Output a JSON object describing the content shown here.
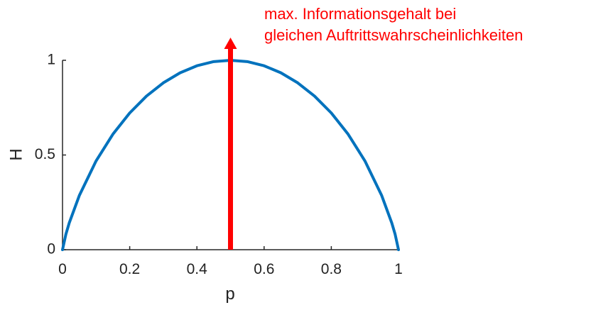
{
  "chart_data": {
    "type": "line",
    "title": "",
    "xlabel": "p",
    "ylabel": "H",
    "xlim": [
      0,
      1
    ],
    "ylim": [
      0,
      1
    ],
    "x_ticks": [
      "0",
      "0.2",
      "0.4",
      "0.6",
      "0.8",
      "1"
    ],
    "y_ticks": [
      "0",
      "0.5",
      "1"
    ],
    "grid": false,
    "legend": "none",
    "series": [
      {
        "color": "#0072BD",
        "x": [
          0,
          0.01,
          0.02,
          0.05,
          0.1,
          0.15,
          0.2,
          0.25,
          0.3,
          0.35,
          0.4,
          0.45,
          0.5,
          0.55,
          0.6,
          0.65,
          0.7,
          0.75,
          0.8,
          0.85,
          0.9,
          0.95,
          0.98,
          0.99,
          1
        ],
        "y": [
          0,
          0.081,
          0.141,
          0.286,
          0.469,
          0.61,
          0.722,
          0.811,
          0.881,
          0.934,
          0.971,
          0.993,
          1.0,
          0.993,
          0.971,
          0.934,
          0.881,
          0.811,
          0.722,
          0.61,
          0.469,
          0.286,
          0.141,
          0.081,
          0
        ]
      }
    ],
    "annotation": {
      "lines": [
        "max. Informationsgehalt bei",
        "gleichen Auftrittswahrscheinlichkeiten"
      ],
      "color": "#FF0000",
      "arrow": {
        "x": 0.5,
        "y_from": 0,
        "y_to": 1.12
      }
    }
  }
}
